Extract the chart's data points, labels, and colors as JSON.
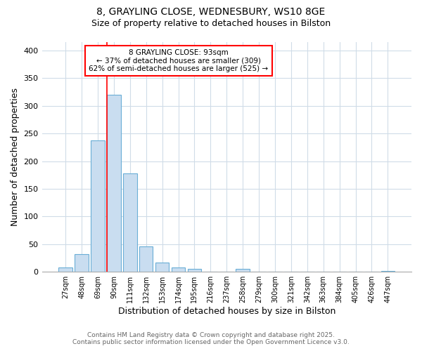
{
  "title1": "8, GRAYLING CLOSE, WEDNESBURY, WS10 8GE",
  "title2": "Size of property relative to detached houses in Bilston",
  "xlabel": "Distribution of detached houses by size in Bilston",
  "ylabel": "Number of detached properties",
  "categories": [
    "27sqm",
    "48sqm",
    "69sqm",
    "90sqm",
    "111sqm",
    "132sqm",
    "153sqm",
    "174sqm",
    "195sqm",
    "216sqm",
    "237sqm",
    "258sqm",
    "279sqm",
    "300sqm",
    "321sqm",
    "342sqm",
    "363sqm",
    "384sqm",
    "405sqm",
    "426sqm",
    "447sqm"
  ],
  "values": [
    8,
    32,
    238,
    320,
    178,
    46,
    17,
    8,
    5,
    0,
    0,
    5,
    0,
    0,
    0,
    0,
    0,
    0,
    0,
    0,
    2
  ],
  "bar_color": "#c9ddf0",
  "bar_edge_color": "#6aaed6",
  "red_line_index": 3,
  "annotation_line1": "8 GRAYLING CLOSE: 93sqm",
  "annotation_line2": "← 37% of detached houses are smaller (309)",
  "annotation_line3": "62% of semi-detached houses are larger (525) →",
  "ylim": [
    0,
    415
  ],
  "yticks": [
    0,
    50,
    100,
    150,
    200,
    250,
    300,
    350,
    400
  ],
  "background_color": "#ffffff",
  "grid_color": "#d0dce8",
  "footer_line1": "Contains HM Land Registry data © Crown copyright and database right 2025.",
  "footer_line2": "Contains public sector information licensed under the Open Government Licence v3.0."
}
